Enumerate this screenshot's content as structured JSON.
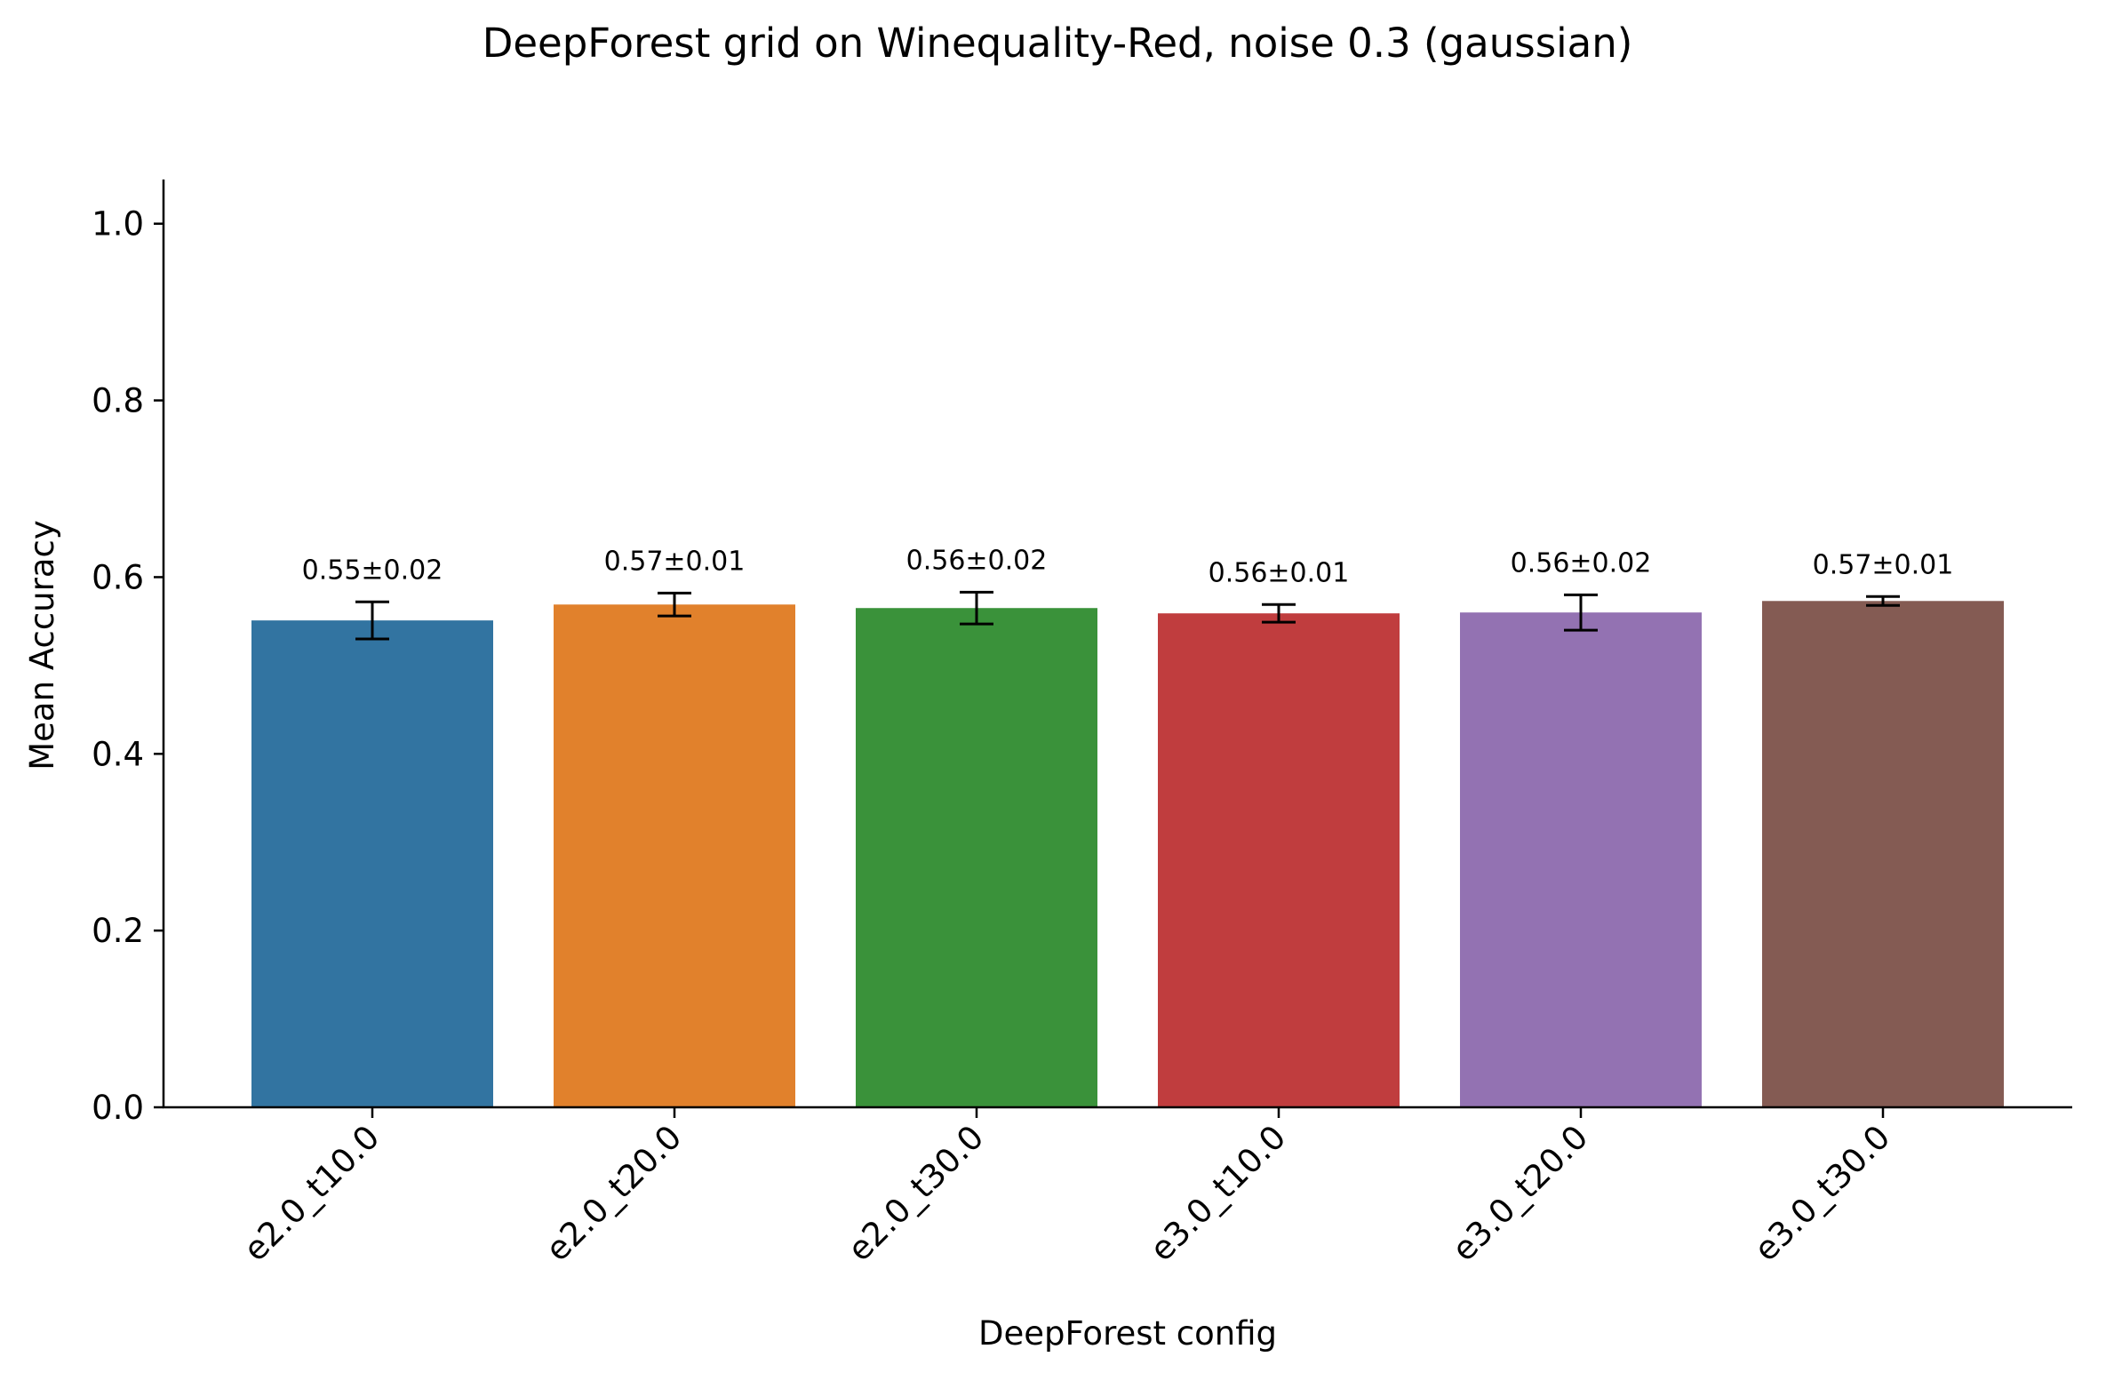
{
  "chart_data": {
    "type": "bar",
    "title": "DeepForest grid on Winequality-Red, noise 0.3 (gaussian)",
    "xlabel": "DeepForest config",
    "ylabel": "Mean Accuracy",
    "categories": [
      "e2.0_t10.0",
      "e2.0_t20.0",
      "e2.0_t30.0",
      "e3.0_t10.0",
      "e3.0_t20.0",
      "e3.0_t30.0"
    ],
    "values": [
      0.551,
      0.569,
      0.565,
      0.559,
      0.56,
      0.573
    ],
    "errors": [
      0.021,
      0.013,
      0.018,
      0.01,
      0.02,
      0.005
    ],
    "data_labels": [
      "0.55±0.02",
      "0.57±0.01",
      "0.56±0.02",
      "0.56±0.01",
      "0.56±0.02",
      "0.57±0.01"
    ],
    "colors": [
      "#3274a1",
      "#e1812c",
      "#3a923a",
      "#c03d3e",
      "#9372b2",
      "#845b53"
    ],
    "ylim": [
      0,
      1.05
    ],
    "yticks": [
      0.0,
      0.2,
      0.4,
      0.6,
      0.8,
      1.0
    ],
    "ytick_labels": [
      "0.0",
      "0.2",
      "0.4",
      "0.6",
      "0.8",
      "1.0"
    ],
    "grid": false,
    "legend": "none"
  }
}
